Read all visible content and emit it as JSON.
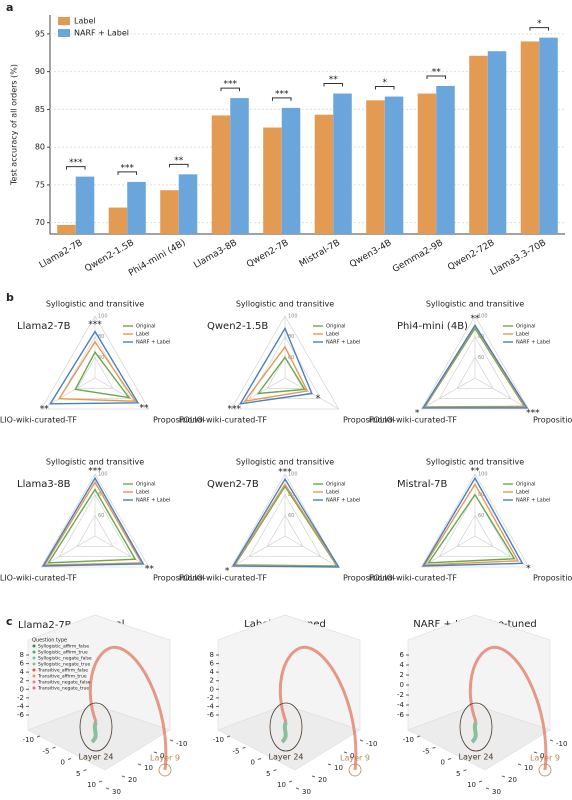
{
  "chart_data": [
    {
      "type": "bar",
      "panel": "a",
      "ylabel": "Test accuracy of all orders (%)",
      "categories": [
        "Llama2-7B",
        "Qwen2-1.5B",
        "Phi4-mini (4B)",
        "Llama3-8B",
        "Qwen2-7B",
        "Mistral-7B",
        "Qwen3-4B",
        "Gemma2-9B",
        "Qwen2-72B",
        "Llama3.3-70B"
      ],
      "series": [
        {
          "name": "Label",
          "color": "#e39a52",
          "values": [
            69.7,
            72.0,
            74.3,
            84.2,
            82.6,
            84.3,
            86.2,
            87.1,
            92.1,
            94.0
          ]
        },
        {
          "name": "NARF + Label",
          "color": "#6aa6dc",
          "values": [
            76.1,
            75.4,
            76.4,
            86.5,
            85.2,
            87.1,
            86.7,
            88.1,
            92.7,
            94.5
          ]
        }
      ],
      "significance": [
        "***",
        "***",
        "**",
        "***",
        "***",
        "**",
        "*",
        "**",
        null,
        "*"
      ],
      "ylim": [
        68.5,
        97.5
      ],
      "yticks": [
        70,
        75,
        80,
        85,
        90,
        95
      ],
      "grid": true,
      "legend": "upper left"
    },
    {
      "type": "radar",
      "panel": "b",
      "axes": [
        "Syllogistic and transitive",
        "Propositional",
        "FOLIO-wiki-curated-TF"
      ],
      "rlim": [
        40,
        100
      ],
      "rticks": [
        60,
        80,
        100
      ],
      "series": [
        {
          "name": "Original",
          "color": "#6aa84f"
        },
        {
          "name": "Label",
          "color": "#e39a52"
        },
        {
          "name": "NARF + Label",
          "color": "#4a7fc1"
        }
      ],
      "charts": [
        {
          "title": "Llama2-7B",
          "values": [
            [
              65,
              78,
              62
            ],
            [
              75,
              85,
              80
            ],
            [
              85,
              88,
              90
            ]
          ],
          "significance": [
            "***",
            "**",
            "**"
          ]
        },
        {
          "title": "Qwen2-1.5B",
          "values": [
            [
              60,
              62,
              70
            ],
            [
              70,
              65,
              85
            ],
            [
              88,
              70,
              90
            ]
          ],
          "significance": [
            null,
            "*",
            "***"
          ]
        },
        {
          "title": "Phi4-mini (4B)",
          "values": [
            [
              88,
              95,
              96
            ],
            [
              90,
              96,
              97
            ],
            [
              91,
              98,
              98
            ]
          ],
          "significance": [
            "**",
            "***",
            "*"
          ]
        },
        {
          "title": "Llama3-8B",
          "values": [
            [
              85,
              85,
              92
            ],
            [
              92,
              92,
              96
            ],
            [
              96,
              94,
              98
            ]
          ],
          "significance": [
            "***",
            "**",
            null
          ]
        },
        {
          "title": "Qwen2-7B",
          "values": [
            [
              88,
              98,
              96
            ],
            [
              90,
              99,
              97
            ],
            [
              95,
              100,
              98
            ]
          ],
          "significance": [
            "***",
            null,
            "*"
          ]
        },
        {
          "title": "Mistral-7B",
          "values": [
            [
              80,
              84,
              92
            ],
            [
              90,
              88,
              96
            ],
            [
              96,
              93,
              98
            ]
          ],
          "significance": [
            "**",
            "*",
            null
          ]
        }
      ]
    },
    {
      "type": "trajectory3d",
      "panel": "c",
      "title": "Llama2-7B",
      "legend_title": "Question type",
      "legend": [
        {
          "name": "Syllogistic_affirm_false",
          "color": "#2e8b57"
        },
        {
          "name": "Syllogistic_affirm_true",
          "color": "#3cb371"
        },
        {
          "name": "Syllogistic_negate_false",
          "color": "#66cdaa"
        },
        {
          "name": "Syllogistic_negate_true",
          "color": "#8fbc8f"
        },
        {
          "name": "Transitive_affirm_false",
          "color": "#cd5c5c"
        },
        {
          "name": "Transitive_affirm_true",
          "color": "#e9967a"
        },
        {
          "name": "Transitive_negate_false",
          "color": "#f08080"
        },
        {
          "name": "Transitive_negate_true",
          "color": "#db7093"
        }
      ],
      "annotations": [
        "Layer 9",
        "Layer 24"
      ],
      "plots": [
        {
          "title": "Original",
          "zticks": [
            8,
            6,
            4,
            2,
            0,
            -2,
            -4,
            -6
          ],
          "xticks": [
            -10,
            -5,
            0,
            5,
            10
          ],
          "yticks": [
            30,
            20,
            10,
            0,
            -10
          ]
        },
        {
          "title": "Label fine-tuned",
          "zticks": [
            8,
            6,
            4,
            2,
            0,
            -2,
            -4,
            -6
          ],
          "xticks": [
            -10,
            -5,
            0,
            5,
            10
          ],
          "yticks": [
            30,
            20,
            10,
            0,
            -10
          ]
        },
        {
          "title": "NARF + Label fine-tuned",
          "zticks": [
            6,
            4,
            2,
            0,
            -2,
            -4,
            -6
          ],
          "xticks": [
            -10,
            -5,
            0,
            5,
            10
          ],
          "yticks": [
            30,
            20,
            10,
            0,
            -10
          ]
        }
      ]
    }
  ]
}
